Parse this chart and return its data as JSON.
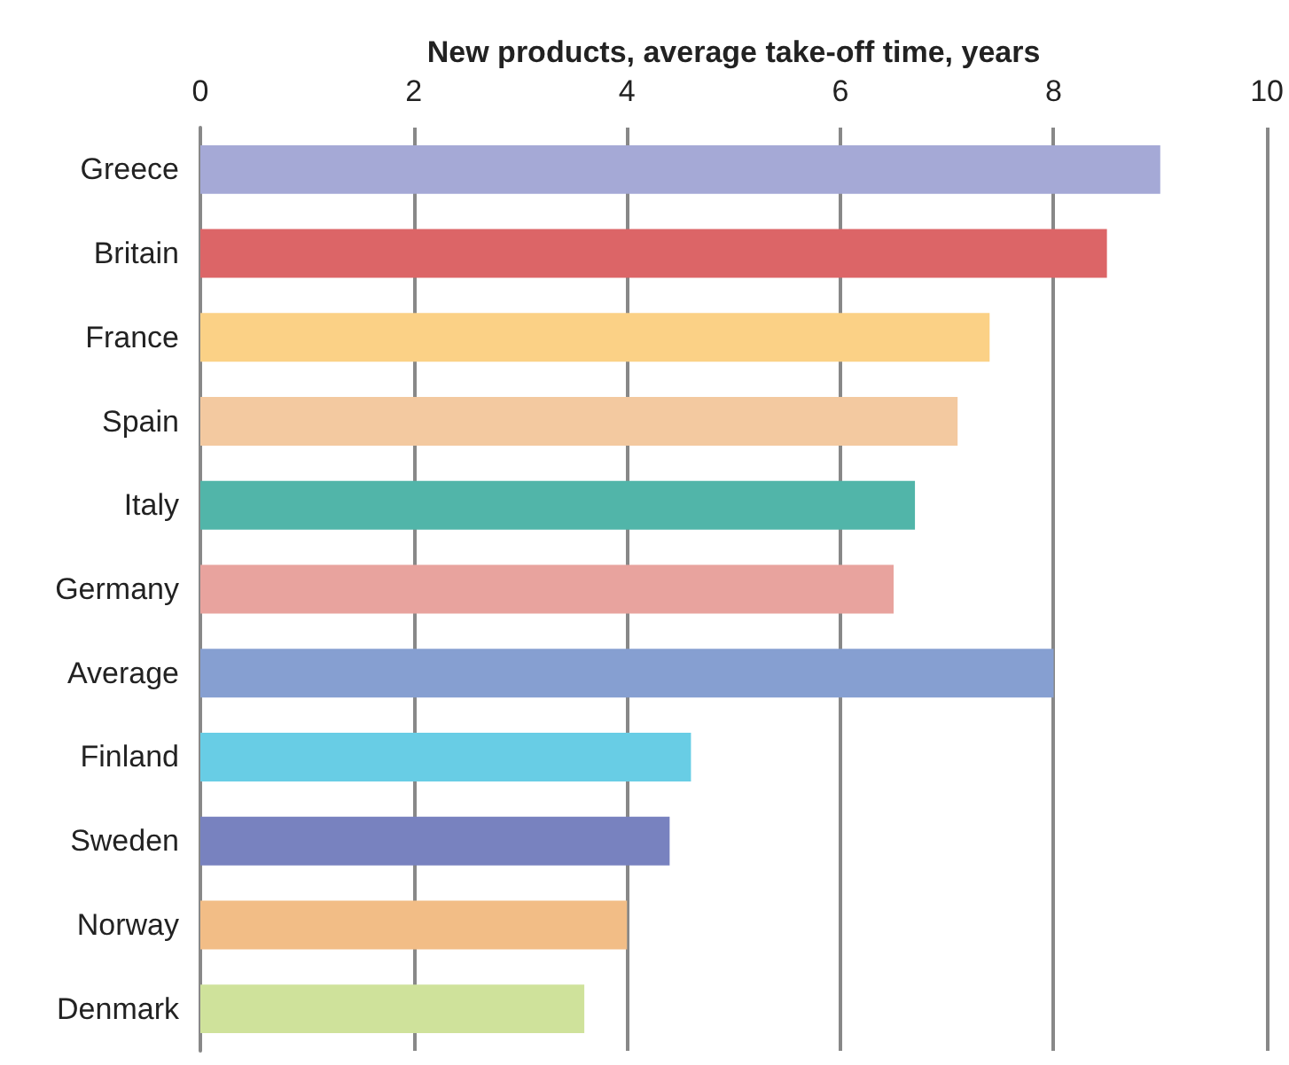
{
  "chart_data": {
    "type": "bar",
    "orientation": "horizontal",
    "xlabel": "New products, average take-off time, years",
    "categories": [
      "Greece",
      "Britain",
      "France",
      "Spain",
      "Italy",
      "Germany",
      "Average",
      "Finland",
      "Sweden",
      "Norway",
      "Denmark"
    ],
    "values": [
      9.0,
      8.5,
      7.4,
      7.1,
      6.7,
      6.5,
      8.0,
      4.6,
      4.4,
      4.0,
      3.6
    ],
    "colors": [
      "#a5a9d6",
      "#dc6567",
      "#fbd186",
      "#f3c9a0",
      "#51b5a9",
      "#e8a39e",
      "#869fd1",
      "#68cde5",
      "#7882bf",
      "#f2bd86",
      "#cfe29b"
    ],
    "xlim": [
      0,
      10
    ],
    "xticks": [
      0,
      2,
      4,
      6,
      8,
      10
    ],
    "grid": "x"
  }
}
